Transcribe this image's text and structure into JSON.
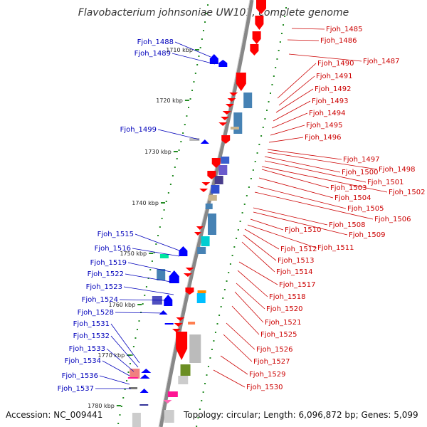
{
  "title": "Flavobacterium johnsoniae UW101, complete genome",
  "accession": "Accession: NC_009441",
  "footer_info": "Topology: circular; Length: 6,096,872 bp; Genes: 5,099",
  "colors": {
    "forward_label": "#cc0000",
    "reverse_label": "#0000bb",
    "backbone": "#888888",
    "tick": "#228b22",
    "forward_gene": "#ff0000",
    "reverse_gene": "#0000ff"
  },
  "kbp_ticks": [
    "1710 kbp",
    "1720 kbp",
    "1730 kbp",
    "1740 kbp",
    "1750 kbp",
    "1760 kbp",
    "1770 kbp",
    "1780 kbp"
  ],
  "forward_labels": [
    "Fjoh_1485",
    "Fjoh_1486",
    "Fjoh_1487",
    "Fjoh_1490",
    "Fjoh_1491",
    "Fjoh_1492",
    "Fjoh_1493",
    "Fjoh_1494",
    "Fjoh_1495",
    "Fjoh_1496",
    "Fjoh_1497",
    "Fjoh_1498",
    "Fjoh_1500",
    "Fjoh_1501",
    "Fjoh_1502",
    "Fjoh_1503",
    "Fjoh_1504",
    "Fjoh_1505",
    "Fjoh_1506",
    "Fjoh_1508",
    "Fjoh_1509",
    "Fjoh_1510",
    "Fjoh_1511",
    "Fjoh_1512",
    "Fjoh_1513",
    "Fjoh_1514",
    "Fjoh_1517",
    "Fjoh_1518",
    "Fjoh_1520",
    "Fjoh_1521",
    "Fjoh_1525",
    "Fjoh_1526",
    "Fjoh_1527",
    "Fjoh_1529",
    "Fjoh_1530"
  ],
  "reverse_labels": [
    "Fjoh_1488",
    "Fjoh_1489",
    "Fjoh_1499",
    "Fjoh_1515",
    "Fjoh_1516",
    "Fjoh_1519",
    "Fjoh_1522",
    "Fjoh_1523",
    "Fjoh_1524",
    "Fjoh_1528",
    "Fjoh_1531",
    "Fjoh_1532",
    "Fjoh_1533",
    "Fjoh_1534",
    "Fjoh_1536",
    "Fjoh_1537"
  ]
}
